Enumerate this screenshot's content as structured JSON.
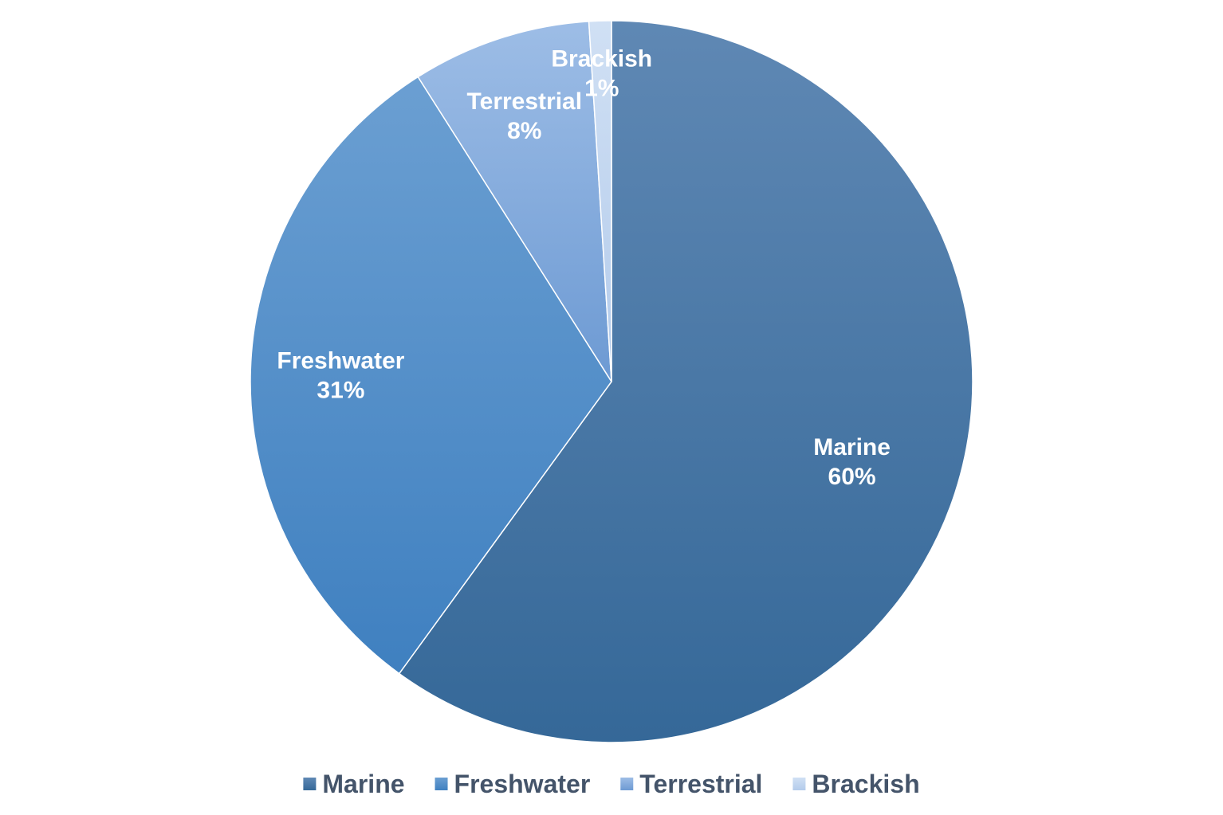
{
  "chart_data": {
    "type": "pie",
    "title": "",
    "categories": [
      "Marine",
      "Freshwater",
      "Terrestrial",
      "Brackish"
    ],
    "values": [
      60,
      31,
      8,
      1
    ],
    "data_labels": [
      "60%",
      "31%",
      "8%",
      "1%"
    ],
    "colors": [
      "#3d6fa3",
      "#4b8bcb",
      "#86aee0",
      "#c5d7f0"
    ],
    "start_angle_deg": 0,
    "direction": "clockwise",
    "legend": {
      "position": "bottom",
      "entries": [
        "Marine",
        "Freshwater",
        "Terrestrial",
        "Brackish"
      ]
    }
  }
}
